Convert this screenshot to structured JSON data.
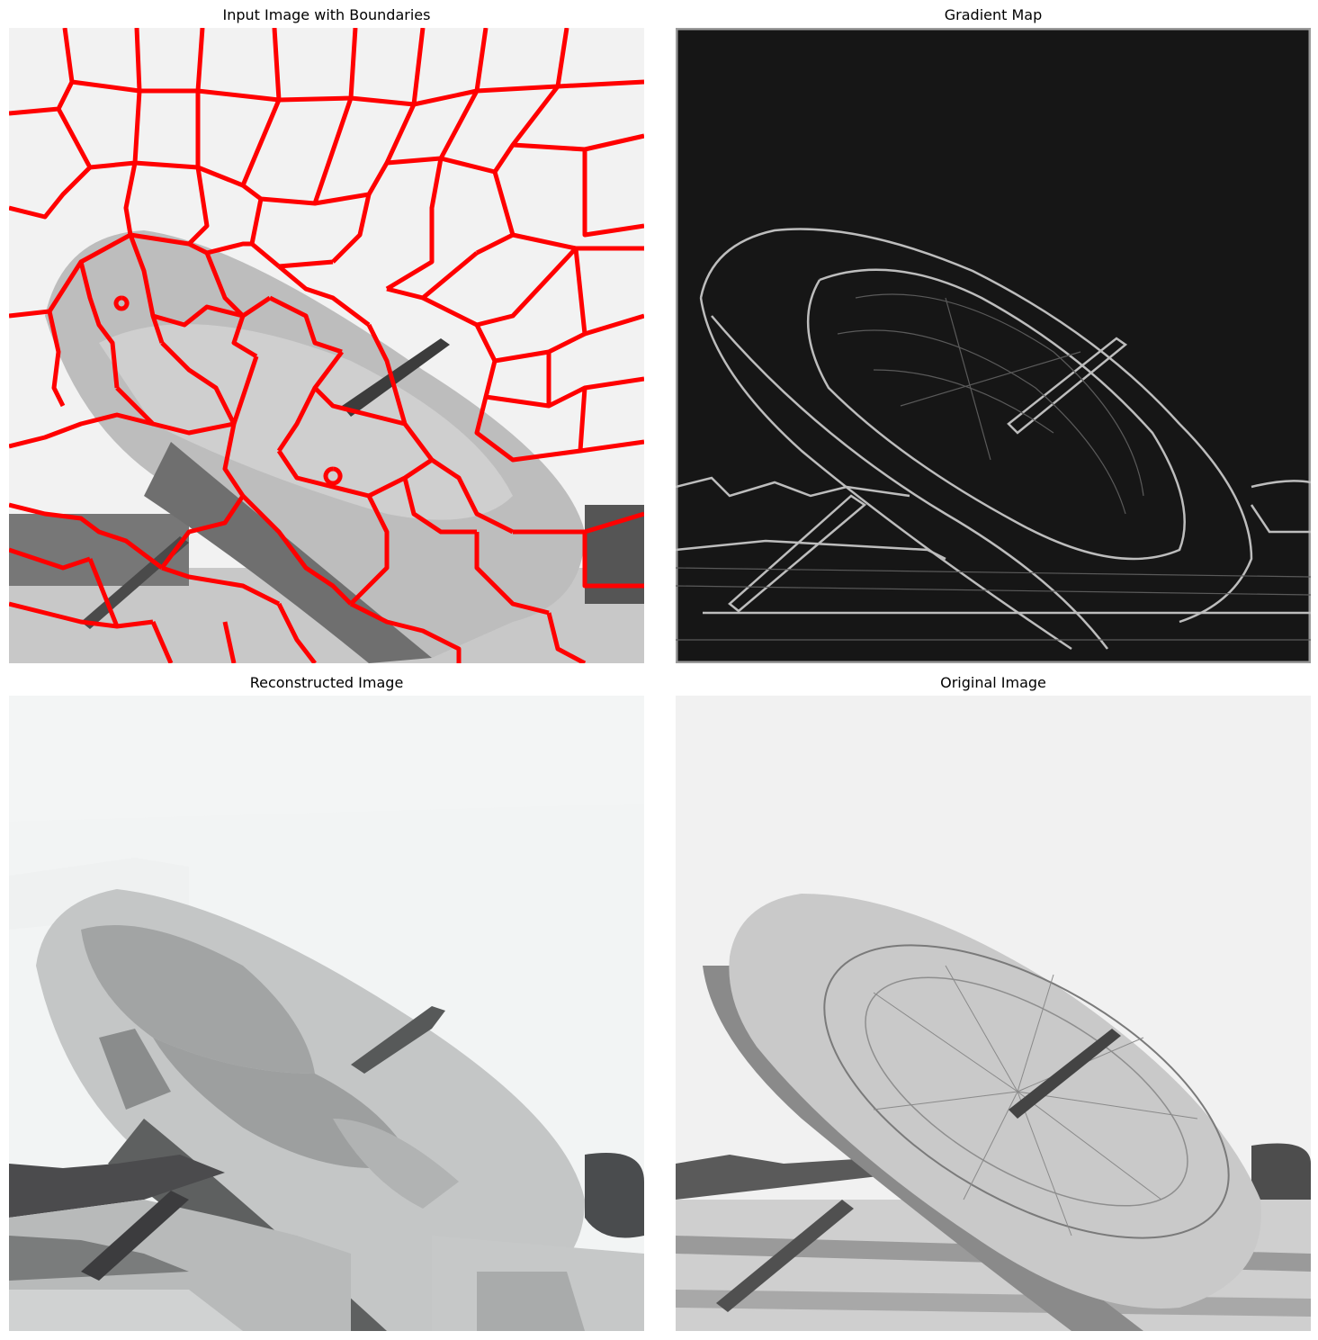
{
  "panels": {
    "boundaries": {
      "title": "Input Image with Boundaries"
    },
    "gradient": {
      "title": "Gradient Map"
    },
    "reconstructed": {
      "title": "Reconstructed Image"
    },
    "original": {
      "title": "Original Image"
    }
  },
  "colors": {
    "boundary": "#ff0000",
    "gradient_background": "#161616",
    "sky": "#f2f2f2"
  }
}
